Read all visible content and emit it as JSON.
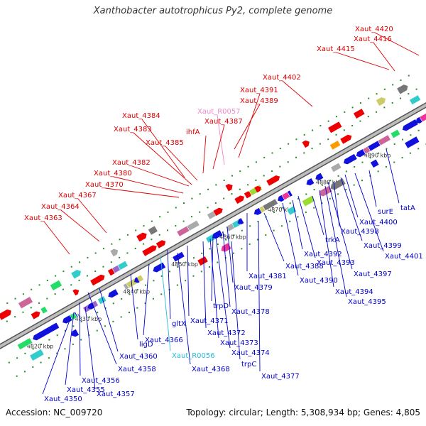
{
  "title": "Xanthobacter autotrophicus Py2, complete genome",
  "footer": {
    "accession": "Accession: NC_009720",
    "summary": "Topology: circular; Length: 5,308,934 bp; Genes: 4,805"
  },
  "colors": {
    "strand_plus_label": "#dd0000",
    "strand_minus_label": "#0000cc",
    "rna_label": "#ee88cc",
    "trna_label": "#22bbdd",
    "plus_gene": "#ee0000",
    "minus_gene": "#1111dd",
    "backbone": "#888888"
  },
  "scale_labels": [
    "4820 kbp",
    "4830 kbp",
    "4840 kbp",
    "4850 kbp",
    "4860 kbp",
    "4870 kbp",
    "4880 kbp",
    "4890 kbp"
  ],
  "plus_labels": [
    "Xaut_4420",
    "Xaut_4416",
    "Xaut_4415",
    "Xaut_4402",
    "Xaut_4391",
    "Xaut_4389",
    "Xaut_R0057",
    "Xaut_4387",
    "ihfA",
    "Xaut_4384",
    "Xaut_4383",
    "Xaut_4385",
    "Xaut_4382",
    "Xaut_4380",
    "Xaut_4370",
    "Xaut_4367",
    "Xaut_4364",
    "Xaut_4363"
  ],
  "minus_labels": [
    "tatA",
    "surE",
    "Xaut_4400",
    "Xaut_4398",
    "Xaut_4399",
    "Xaut_4401",
    "trkA",
    "Xaut_4392",
    "Xaut_4393",
    "Xaut_4388",
    "Xaut_4390",
    "Xaut_4397",
    "Xaut_4394",
    "Xaut_4395",
    "Xaut_4381",
    "Xaut_4379",
    "trpD",
    "Xaut_4378",
    "Xaut_4371",
    "gltX",
    "Xaut_4372",
    "Xaut_4373",
    "Xaut_4374",
    "ligD",
    "Xaut_4366",
    "trpC",
    "Xaut_4360",
    "Xaut_R0056",
    "Xaut_4358",
    "Xaut_4368",
    "Xaut_4377",
    "Xaut_4356",
    "Xaut_4350",
    "Xaut_4355",
    "Xaut_4357"
  ]
}
